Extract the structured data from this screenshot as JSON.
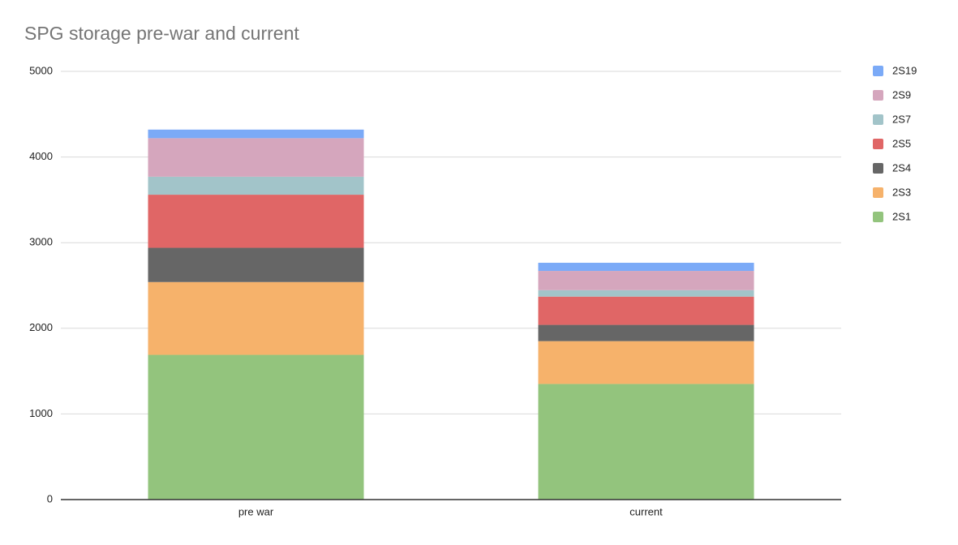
{
  "chart_data": {
    "type": "stacked_bar",
    "title": "SPG storage pre-war and current",
    "categories": [
      "pre war",
      "current"
    ],
    "series": [
      {
        "name": "2S1",
        "color": "#93c47d",
        "values": [
          1690,
          1350
        ]
      },
      {
        "name": "2S3",
        "color": "#f6b26b",
        "values": [
          850,
          500
        ]
      },
      {
        "name": "2S4",
        "color": "#666666",
        "values": [
          400,
          190
        ]
      },
      {
        "name": "2S5",
        "color": "#e06666",
        "values": [
          620,
          330
        ]
      },
      {
        "name": "2S7",
        "color": "#a2c4c9",
        "values": [
          210,
          75
        ]
      },
      {
        "name": "2S9",
        "color": "#d5a6bd",
        "values": [
          450,
          225
        ]
      },
      {
        "name": "2S19",
        "color": "#7baaf7",
        "values": [
          100,
          95
        ]
      }
    ],
    "ylim": [
      0,
      5000
    ],
    "yticks": [
      0,
      1000,
      2000,
      3000,
      4000,
      5000
    ],
    "grid": true,
    "legend": "right"
  }
}
